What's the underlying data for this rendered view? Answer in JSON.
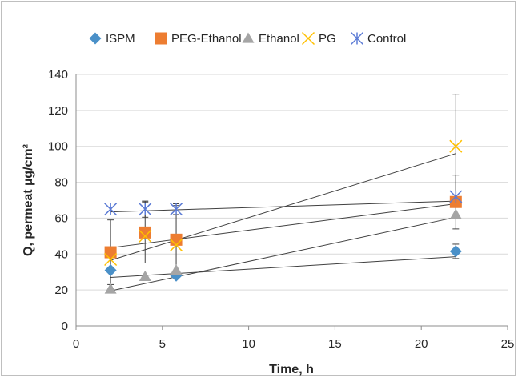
{
  "chart_data": {
    "type": "scatter",
    "title": "",
    "xlabel": "Time, h",
    "ylabel": "Q, permeat µg/cm²",
    "xlim": [
      0,
      25
    ],
    "ylim": [
      0,
      140
    ],
    "x_ticks": [
      "0",
      "5",
      "10",
      "15",
      "20",
      "25"
    ],
    "y_ticks": [
      "0",
      "20",
      "40",
      "60",
      "80",
      "100",
      "120",
      "140"
    ],
    "grid": "horizontal",
    "legend_position": "top",
    "series": [
      {
        "name": "ISPM",
        "marker": "diamond",
        "color": "#4a90c8",
        "points": [
          {
            "x": 2,
            "y": 31
          },
          {
            "x": 4,
            "y": 51
          },
          {
            "x": 5.8,
            "y": 28
          },
          {
            "x": 22,
            "y": 41.5
          }
        ],
        "error": [
          null,
          null,
          null,
          4
        ],
        "trend": {
          "x0": 2,
          "y0": 27,
          "x1": 22,
          "y1": 38.5
        }
      },
      {
        "name": "PEG-Ethanol",
        "marker": "square",
        "color": "#ed7d31",
        "points": [
          {
            "x": 2,
            "y": 41
          },
          {
            "x": 4,
            "y": 52
          },
          {
            "x": 5.8,
            "y": 48
          },
          {
            "x": 22,
            "y": 69
          }
        ],
        "error": [
          18,
          17,
          19,
          15
        ],
        "trend": {
          "x0": 2,
          "y0": 43.5,
          "x1": 22,
          "y1": 68
        }
      },
      {
        "name": "Ethanol",
        "marker": "triangle",
        "color": "#a5a5a5",
        "points": [
          {
            "x": 2,
            "y": 20.5
          },
          {
            "x": 4,
            "y": 27.5
          },
          {
            "x": 5.8,
            "y": 31
          },
          {
            "x": 22,
            "y": 62
          }
        ],
        "error": [
          null,
          null,
          null,
          null
        ],
        "trend": {
          "x0": 2,
          "y0": 19.5,
          "x1": 22,
          "y1": 60.5
        }
      },
      {
        "name": "PG",
        "marker": "x",
        "color": "#ffc000",
        "points": [
          {
            "x": 2,
            "y": 37
          },
          {
            "x": 4,
            "y": 50
          },
          {
            "x": 5.8,
            "y": 45
          },
          {
            "x": 22,
            "y": 100
          }
        ],
        "error": [
          null,
          null,
          null,
          29
        ],
        "trend": {
          "x0": 2,
          "y0": 36.5,
          "x1": 22,
          "y1": 96
        }
      },
      {
        "name": "Control",
        "marker": "asterisk",
        "color": "#5b7bd5",
        "points": [
          {
            "x": 2,
            "y": 65
          },
          {
            "x": 4,
            "y": 65
          },
          {
            "x": 5.8,
            "y": 65
          },
          {
            "x": 22,
            "y": 72
          }
        ],
        "error": [
          null,
          4.5,
          3,
          12
        ],
        "trend": {
          "x0": 2,
          "y0": 63.5,
          "x1": 22,
          "y1": 69.5
        }
      }
    ]
  }
}
